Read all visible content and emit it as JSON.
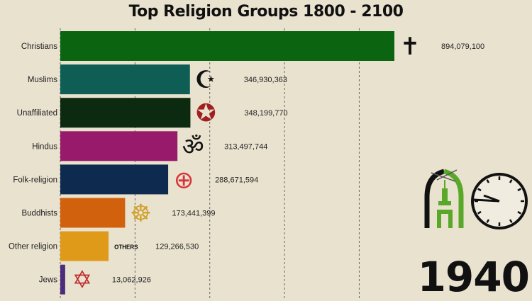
{
  "chart_data": {
    "type": "bar",
    "orientation": "horizontal",
    "title": "Top Religion Groups 1800 - 2100",
    "year": "1940",
    "xlim": [
      0,
      900000000
    ],
    "grid_ticks": [
      0,
      200000000,
      400000000,
      600000000,
      800000000
    ],
    "grid": true,
    "categories": [
      "Christians",
      "Muslims",
      "Unaffiliated",
      "Hindus",
      "Folk-religion",
      "Buddhists",
      "Other religion",
      "Jews"
    ],
    "values": [
      894079100,
      346930363,
      348199770,
      313497744,
      288671594,
      173441399,
      129266530,
      13062926
    ],
    "value_labels": [
      "894,079,100",
      "346,930,363",
      "348,199,770",
      "313,497,744",
      "288,671,594",
      "173,441,399",
      "129,266,530",
      "13,062,926"
    ],
    "colors": [
      "#0b6410",
      "#0e5e55",
      "#0c2a10",
      "#981a6a",
      "#0f2a4f",
      "#d2610e",
      "#e09a1a",
      "#4b2d7a"
    ],
    "icons": [
      "cross-icon",
      "crescent-star-icon",
      "unaffiliated-symbols-icon",
      "om-icon",
      "folk-religion-emblem-icon",
      "dharma-wheel-icon",
      "others-label",
      "star-of-david-icon"
    ],
    "others_icon_text": "OTHERS"
  }
}
